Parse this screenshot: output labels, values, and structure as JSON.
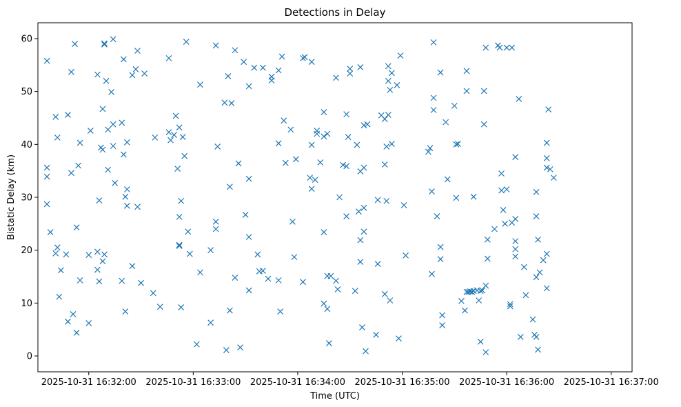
{
  "chart_data": {
    "type": "scatter",
    "title": "Detections in Delay",
    "xlabel": "Time (UTC)",
    "ylabel": "Bistatic Delay (km)",
    "marker": "x",
    "color": "#1f77b4",
    "x_unit": "seconds after 2025-10-31 16:32:00 UTC",
    "xlim": [
      -29.2,
      312.0
    ],
    "ylim": [
      -3.0,
      63.0
    ],
    "x_ticks": [
      {
        "value": 0,
        "label": "2025-10-31 16:32:00"
      },
      {
        "value": 60,
        "label": "2025-10-31 16:33:00"
      },
      {
        "value": 120,
        "label": "2025-10-31 16:34:00"
      },
      {
        "value": 180,
        "label": "2025-10-31 16:35:00"
      },
      {
        "value": 240,
        "label": "2025-10-31 16:36:00"
      },
      {
        "value": 300,
        "label": "2025-10-31 16:37:00"
      }
    ],
    "y_ticks": [
      {
        "value": 0,
        "label": "0"
      },
      {
        "value": 10,
        "label": "10"
      },
      {
        "value": 20,
        "label": "20"
      },
      {
        "value": 30,
        "label": "30"
      },
      {
        "value": 40,
        "label": "40"
      },
      {
        "value": 50,
        "label": "50"
      },
      {
        "value": 60,
        "label": "60"
      }
    ],
    "points": [
      [
        -24,
        55.8
      ],
      [
        -24,
        35.6
      ],
      [
        -24,
        33.9
      ],
      [
        -24,
        28.7
      ],
      [
        -22,
        23.4
      ],
      [
        -19,
        45.2
      ],
      [
        -19,
        19.4
      ],
      [
        -18,
        41.3
      ],
      [
        -18,
        20.5
      ],
      [
        -17,
        11.2
      ],
      [
        -16,
        16.2
      ],
      [
        -13,
        19.2
      ],
      [
        -12,
        45.6
      ],
      [
        -12,
        6.5
      ],
      [
        -10,
        53.7
      ],
      [
        -10,
        34.6
      ],
      [
        -9,
        7.9
      ],
      [
        -8,
        59.0
      ],
      [
        -7,
        4.4
      ],
      [
        -7,
        24.3
      ],
      [
        -6,
        36.0
      ],
      [
        -5,
        40.3
      ],
      [
        -5,
        14.3
      ],
      [
        0,
        19.1
      ],
      [
        0,
        6.2
      ],
      [
        1,
        42.6
      ],
      [
        5,
        53.2
      ],
      [
        5,
        19.7
      ],
      [
        5,
        16.3
      ],
      [
        6,
        29.4
      ],
      [
        6,
        14.1
      ],
      [
        7,
        39.4
      ],
      [
        8,
        39.0
      ],
      [
        8,
        17.9
      ],
      [
        8,
        46.7
      ],
      [
        9,
        59.1
      ],
      [
        9,
        58.9
      ],
      [
        9,
        19.2
      ],
      [
        10,
        52.0
      ],
      [
        11,
        42.8
      ],
      [
        11,
        35.2
      ],
      [
        13,
        49.9
      ],
      [
        14,
        59.9
      ],
      [
        14,
        43.8
      ],
      [
        14,
        39.7
      ],
      [
        15,
        32.7
      ],
      [
        19,
        44.1
      ],
      [
        19,
        14.2
      ],
      [
        20,
        56.1
      ],
      [
        20,
        38.1
      ],
      [
        21,
        30.1
      ],
      [
        21,
        8.4
      ],
      [
        22,
        31.5
      ],
      [
        22,
        40.4
      ],
      [
        22,
        28.4
      ],
      [
        25,
        53.1
      ],
      [
        25,
        17.0
      ],
      [
        27,
        54.2
      ],
      [
        28,
        57.7
      ],
      [
        28,
        28.2
      ],
      [
        30,
        13.8
      ],
      [
        32,
        53.4
      ],
      [
        37,
        11.9
      ],
      [
        38,
        41.3
      ],
      [
        41,
        9.3
      ],
      [
        46,
        56.3
      ],
      [
        46,
        42.3
      ],
      [
        47,
        40.8
      ],
      [
        49,
        41.8
      ],
      [
        50,
        45.4
      ],
      [
        51,
        35.4
      ],
      [
        52,
        43.2
      ],
      [
        52,
        26.3
      ],
      [
        52,
        21.0
      ],
      [
        52,
        20.8
      ],
      [
        53,
        29.3
      ],
      [
        53,
        9.2
      ],
      [
        54,
        41.4
      ],
      [
        55,
        37.8
      ],
      [
        56,
        59.4
      ],
      [
        57,
        23.5
      ],
      [
        58,
        19.3
      ],
      [
        62,
        2.2
      ],
      [
        64,
        51.3
      ],
      [
        64,
        15.8
      ],
      [
        70,
        6.3
      ],
      [
        70,
        20.0
      ],
      [
        73,
        58.7
      ],
      [
        73,
        25.4
      ],
      [
        73,
        24.0
      ],
      [
        74,
        39.6
      ],
      [
        78,
        47.9
      ],
      [
        79,
        1.1
      ],
      [
        80,
        52.9
      ],
      [
        81,
        8.6
      ],
      [
        81,
        32.0
      ],
      [
        82,
        47.8
      ],
      [
        84,
        57.8
      ],
      [
        84,
        14.8
      ],
      [
        86,
        36.4
      ],
      [
        87,
        1.6
      ],
      [
        89,
        55.6
      ],
      [
        90,
        26.7
      ],
      [
        92,
        51.0
      ],
      [
        92,
        33.5
      ],
      [
        92,
        22.5
      ],
      [
        92,
        12.4
      ],
      [
        95,
        54.5
      ],
      [
        97,
        19.2
      ],
      [
        98,
        16.0
      ],
      [
        100,
        54.5
      ],
      [
        100,
        16.1
      ],
      [
        103,
        14.6
      ],
      [
        105,
        52.8
      ],
      [
        105,
        52.1
      ],
      [
        109,
        54.0
      ],
      [
        109,
        40.2
      ],
      [
        109,
        14.3
      ],
      [
        110,
        8.4
      ],
      [
        111,
        56.6
      ],
      [
        112,
        44.5
      ],
      [
        113,
        36.5
      ],
      [
        116,
        42.8
      ],
      [
        117,
        25.4
      ],
      [
        118,
        18.7
      ],
      [
        119,
        37.2
      ],
      [
        123,
        56.3
      ],
      [
        123,
        14.0
      ],
      [
        124,
        56.5
      ],
      [
        127,
        33.7
      ],
      [
        128,
        31.6
      ],
      [
        128,
        39.9
      ],
      [
        128,
        55.6
      ],
      [
        130,
        33.3
      ],
      [
        131,
        42.6
      ],
      [
        131,
        42.0
      ],
      [
        133,
        36.6
      ],
      [
        135,
        46.1
      ],
      [
        135,
        41.5
      ],
      [
        135,
        23.4
      ],
      [
        135,
        9.9
      ],
      [
        137,
        42.0
      ],
      [
        137,
        15.1
      ],
      [
        137,
        8.9
      ],
      [
        138,
        2.4
      ],
      [
        139,
        15.1
      ],
      [
        142,
        52.6
      ],
      [
        142,
        14.2
      ],
      [
        143,
        12.6
      ],
      [
        144,
        30.0
      ],
      [
        146,
        36.1
      ],
      [
        148,
        45.7
      ],
      [
        148,
        35.9
      ],
      [
        148,
        26.4
      ],
      [
        149,
        41.4
      ],
      [
        150,
        54.3
      ],
      [
        150,
        53.4
      ],
      [
        153,
        12.3
      ],
      [
        154,
        39.9
      ],
      [
        155,
        27.3
      ],
      [
        156,
        54.6
      ],
      [
        156,
        34.9
      ],
      [
        156,
        21.9
      ],
      [
        156,
        17.8
      ],
      [
        157,
        5.4
      ],
      [
        158,
        43.6
      ],
      [
        158,
        35.6
      ],
      [
        158,
        28.0
      ],
      [
        158,
        23.5
      ],
      [
        159,
        0.9
      ],
      [
        160,
        43.8
      ],
      [
        165,
        4.0
      ],
      [
        166,
        29.5
      ],
      [
        166,
        17.4
      ],
      [
        168,
        45.5
      ],
      [
        170,
        44.8
      ],
      [
        170,
        36.2
      ],
      [
        170,
        11.7
      ],
      [
        171,
        29.3
      ],
      [
        171,
        39.6
      ],
      [
        172,
        45.6
      ],
      [
        172,
        54.8
      ],
      [
        172,
        52.0
      ],
      [
        173,
        50.3
      ],
      [
        173,
        10.5
      ],
      [
        174,
        53.5
      ],
      [
        174,
        40.1
      ],
      [
        177,
        51.2
      ],
      [
        178,
        3.3
      ],
      [
        179,
        56.8
      ],
      [
        181,
        28.5
      ],
      [
        182,
        19.0
      ],
      [
        195,
        38.6
      ],
      [
        196,
        39.3
      ],
      [
        197,
        31.1
      ],
      [
        197,
        15.5
      ],
      [
        198,
        59.3
      ],
      [
        198,
        48.8
      ],
      [
        198,
        46.5
      ],
      [
        200,
        26.4
      ],
      [
        202,
        53.6
      ],
      [
        202,
        20.6
      ],
      [
        202,
        18.3
      ],
      [
        203,
        7.7
      ],
      [
        203,
        5.8
      ],
      [
        205,
        44.2
      ],
      [
        206,
        33.4
      ],
      [
        210,
        47.3
      ],
      [
        211,
        40.0
      ],
      [
        211,
        29.9
      ],
      [
        212,
        40.1
      ],
      [
        214,
        10.4
      ],
      [
        216,
        8.6
      ],
      [
        217,
        12.1
      ],
      [
        217,
        53.9
      ],
      [
        217,
        50.1
      ],
      [
        218,
        12.1
      ],
      [
        219,
        12.2
      ],
      [
        220,
        12.1
      ],
      [
        220,
        12.1
      ],
      [
        221,
        12.3
      ],
      [
        221,
        30.1
      ],
      [
        223,
        12.4
      ],
      [
        224,
        10.5
      ],
      [
        225,
        12.3
      ],
      [
        225,
        2.7
      ],
      [
        226,
        12.4
      ],
      [
        227,
        50.1
      ],
      [
        227,
        43.8
      ],
      [
        228,
        58.3
      ],
      [
        228,
        13.3
      ],
      [
        228,
        0.7
      ],
      [
        229,
        22.0
      ],
      [
        229,
        18.4
      ],
      [
        233,
        24.0
      ],
      [
        235,
        58.7
      ],
      [
        236,
        58.3
      ],
      [
        237,
        34.5
      ],
      [
        237,
        31.3
      ],
      [
        238,
        27.6
      ],
      [
        239,
        25.0
      ],
      [
        240,
        58.3
      ],
      [
        240,
        31.5
      ],
      [
        242,
        9.8
      ],
      [
        242,
        9.4
      ],
      [
        243,
        58.3
      ],
      [
        243,
        25.2
      ],
      [
        245,
        37.6
      ],
      [
        245,
        25.9
      ],
      [
        245,
        21.7
      ],
      [
        245,
        20.2
      ],
      [
        245,
        18.8
      ],
      [
        247,
        48.6
      ],
      [
        248,
        3.6
      ],
      [
        250,
        16.8
      ],
      [
        251,
        11.5
      ],
      [
        255,
        6.9
      ],
      [
        256,
        4.0
      ],
      [
        257,
        31.0
      ],
      [
        257,
        26.4
      ],
      [
        257,
        14.9
      ],
      [
        257,
        3.6
      ],
      [
        258,
        22.0
      ],
      [
        258,
        1.2
      ],
      [
        259,
        15.8
      ],
      [
        261,
        18.1
      ],
      [
        263,
        35.6
      ],
      [
        263,
        40.3
      ],
      [
        263,
        37.4
      ],
      [
        263,
        19.3
      ],
      [
        263,
        12.8
      ],
      [
        264,
        46.6
      ],
      [
        265,
        35.3
      ],
      [
        267,
        33.7
      ]
    ]
  }
}
